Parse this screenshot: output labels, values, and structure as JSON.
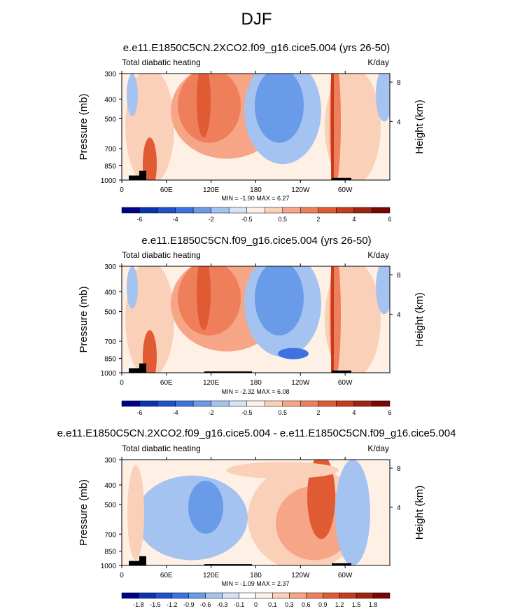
{
  "page_title": "DJF",
  "colors": {
    "panel_abs": [
      "#00008c",
      "#0a33b4",
      "#1f51cc",
      "#3d72e0",
      "#6a9be8",
      "#a5c3f1",
      "#d4e3f8",
      "#fff0e6",
      "#fad0b8",
      "#f6a586",
      "#ef7f5b",
      "#e05a33",
      "#c83b1d",
      "#a0230f",
      "#7a0603"
    ],
    "panel_diff": [
      "#00008c",
      "#0a33b4",
      "#1f51cc",
      "#3d72e0",
      "#6a9be8",
      "#a5c3f1",
      "#d4e3f8",
      "#ffffff",
      "#fff0e6",
      "#fad0b8",
      "#f6a586",
      "#ef7f5b",
      "#e05a33",
      "#c83b1d",
      "#a0230f",
      "#7a0603"
    ]
  },
  "panels": [
    {
      "title": "e.e11.E1850C5CN.2XCO2.f09_g16.cice5.004 (yrs 26-50)",
      "variable": "Total diabatic heating",
      "units": "K/day",
      "minmax": "MIN = -1.90   MAX =  6.27",
      "colorbar_labels": [
        "-6",
        "-4",
        "-2",
        "-0.5",
        "0.5",
        "2",
        "4",
        "6"
      ]
    },
    {
      "title": "e.e11.E1850C5CN.f09_g16.cice5.004 (yrs 26-50)",
      "variable": "Total diabatic heating",
      "units": "K/day",
      "minmax": "MIN = -2.32   MAX =  6.08",
      "colorbar_labels": [
        "-6",
        "-4",
        "-2",
        "-0.5",
        "0.5",
        "2",
        "4",
        "6"
      ]
    },
    {
      "title": "e.e11.E1850C5CN.2XCO2.f09_g16.cice5.004 - e.e11.E1850C5CN.f09_g16.cice5.004",
      "variable": "Total diabatic heating",
      "units": "K/day",
      "minmax": "MIN = -1.09   MAX =  2.37",
      "colorbar_labels": [
        "-1.8",
        "-1.5",
        "-1.2",
        "-0.9",
        "-0.6",
        "-0.3",
        "-0.1",
        "0",
        "0.1",
        "0.3",
        "0.6",
        "0.9",
        "1.2",
        "1.5",
        "1.8"
      ]
    }
  ],
  "chart_data": [
    {
      "type": "heatmap",
      "title": "e.e11.E1850C5CN.2XCO2.f09_g16.cice5.004 (yrs 26-50)",
      "subtitle": "Total diabatic heating",
      "units": "K/day",
      "xlabel": "",
      "ylabel": "Pressure (mb)",
      "y2label": "Height (km)",
      "x_ticks": [
        "0",
        "60E",
        "120E",
        "180",
        "120W",
        "60W"
      ],
      "y_ticks": [
        "300",
        "400",
        "500",
        "700",
        "850",
        "1000"
      ],
      "y2_ticks": [
        "8",
        "4"
      ],
      "ylim": [
        1000,
        300
      ],
      "min": -1.9,
      "max": 6.27,
      "contour_levels": [
        -6,
        -4,
        -2,
        -0.5,
        0.5,
        2,
        4,
        6
      ]
    },
    {
      "type": "heatmap",
      "title": "e.e11.E1850C5CN.f09_g16.cice5.004 (yrs 26-50)",
      "subtitle": "Total diabatic heating",
      "units": "K/day",
      "xlabel": "",
      "ylabel": "Pressure (mb)",
      "y2label": "Height (km)",
      "x_ticks": [
        "0",
        "60E",
        "120E",
        "180",
        "120W",
        "60W"
      ],
      "y_ticks": [
        "300",
        "400",
        "500",
        "700",
        "850",
        "1000"
      ],
      "y2_ticks": [
        "8",
        "4"
      ],
      "ylim": [
        1000,
        300
      ],
      "min": -2.32,
      "max": 6.08,
      "contour_levels": [
        -6,
        -4,
        -2,
        -0.5,
        0.5,
        2,
        4,
        6
      ]
    },
    {
      "type": "heatmap",
      "title": "e.e11.E1850C5CN.2XCO2.f09_g16.cice5.004 - e.e11.E1850C5CN.f09_g16.cice5.004",
      "subtitle": "Total diabatic heating",
      "units": "K/day",
      "xlabel": "",
      "ylabel": "Pressure (mb)",
      "y2label": "Height (km)",
      "x_ticks": [
        "0",
        "60E",
        "120E",
        "180",
        "120W",
        "60W"
      ],
      "y_ticks": [
        "300",
        "400",
        "500",
        "700",
        "850",
        "1000"
      ],
      "y2_ticks": [
        "8",
        "4"
      ],
      "ylim": [
        1000,
        300
      ],
      "min": -1.09,
      "max": 2.37,
      "contour_levels": [
        -1.8,
        -1.5,
        -1.2,
        -0.9,
        -0.6,
        -0.3,
        -0.1,
        0,
        0.1,
        0.3,
        0.6,
        0.9,
        1.2,
        1.5,
        1.8
      ]
    }
  ]
}
